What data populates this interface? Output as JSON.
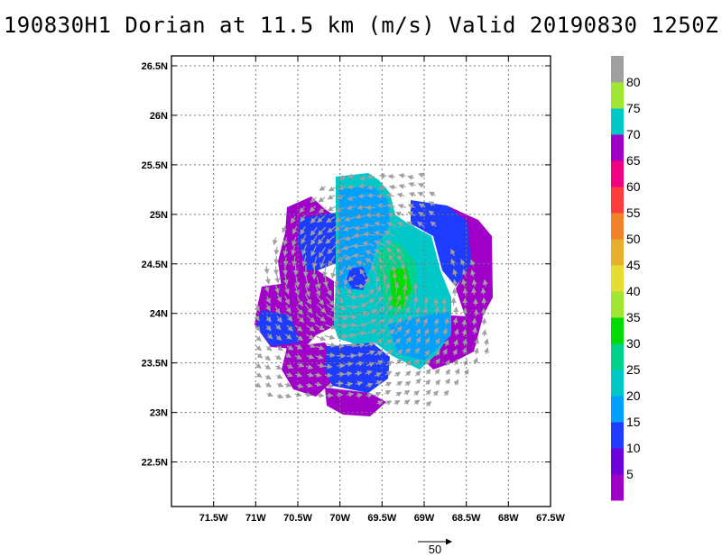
{
  "title": "190830H1 Dorian at 11.5 km (m/s) Valid 20190830 1250Z",
  "map": {
    "lat_labels": [
      "26.5N",
      "26N",
      "25.5N",
      "25N",
      "24.5N",
      "24N",
      "23.5N",
      "23N",
      "22.5N"
    ],
    "lon_labels": [
      "71.5W",
      "71W",
      "70.5W",
      "70W",
      "69.5W",
      "69W",
      "68.5W",
      "68W",
      "67.5W"
    ],
    "lat_range": [
      22.05,
      26.6
    ],
    "lon_range": [
      -72.0,
      -67.5
    ],
    "grid": "dotted"
  },
  "colorbar": {
    "labels": [
      "5",
      "10",
      "15",
      "20",
      "25",
      "30",
      "35",
      "40",
      "45",
      "50",
      "55",
      "60",
      "65",
      "70",
      "75",
      "80"
    ],
    "colors": [
      "#a000c8",
      "#6e00dc",
      "#1e3cff",
      "#00a0ff",
      "#00c8c8",
      "#00d28c",
      "#00dc00",
      "#a0e632",
      "#e6dc32",
      "#e6af2d",
      "#f08228",
      "#fa3c3c",
      "#f00082",
      "#a000c8",
      "#00c8c8",
      "#a0e632",
      "#a0a0a0"
    ]
  },
  "vector_scale": {
    "label": "50"
  },
  "colors": {
    "vector": "#a0a0a0",
    "grid": "#777777"
  }
}
